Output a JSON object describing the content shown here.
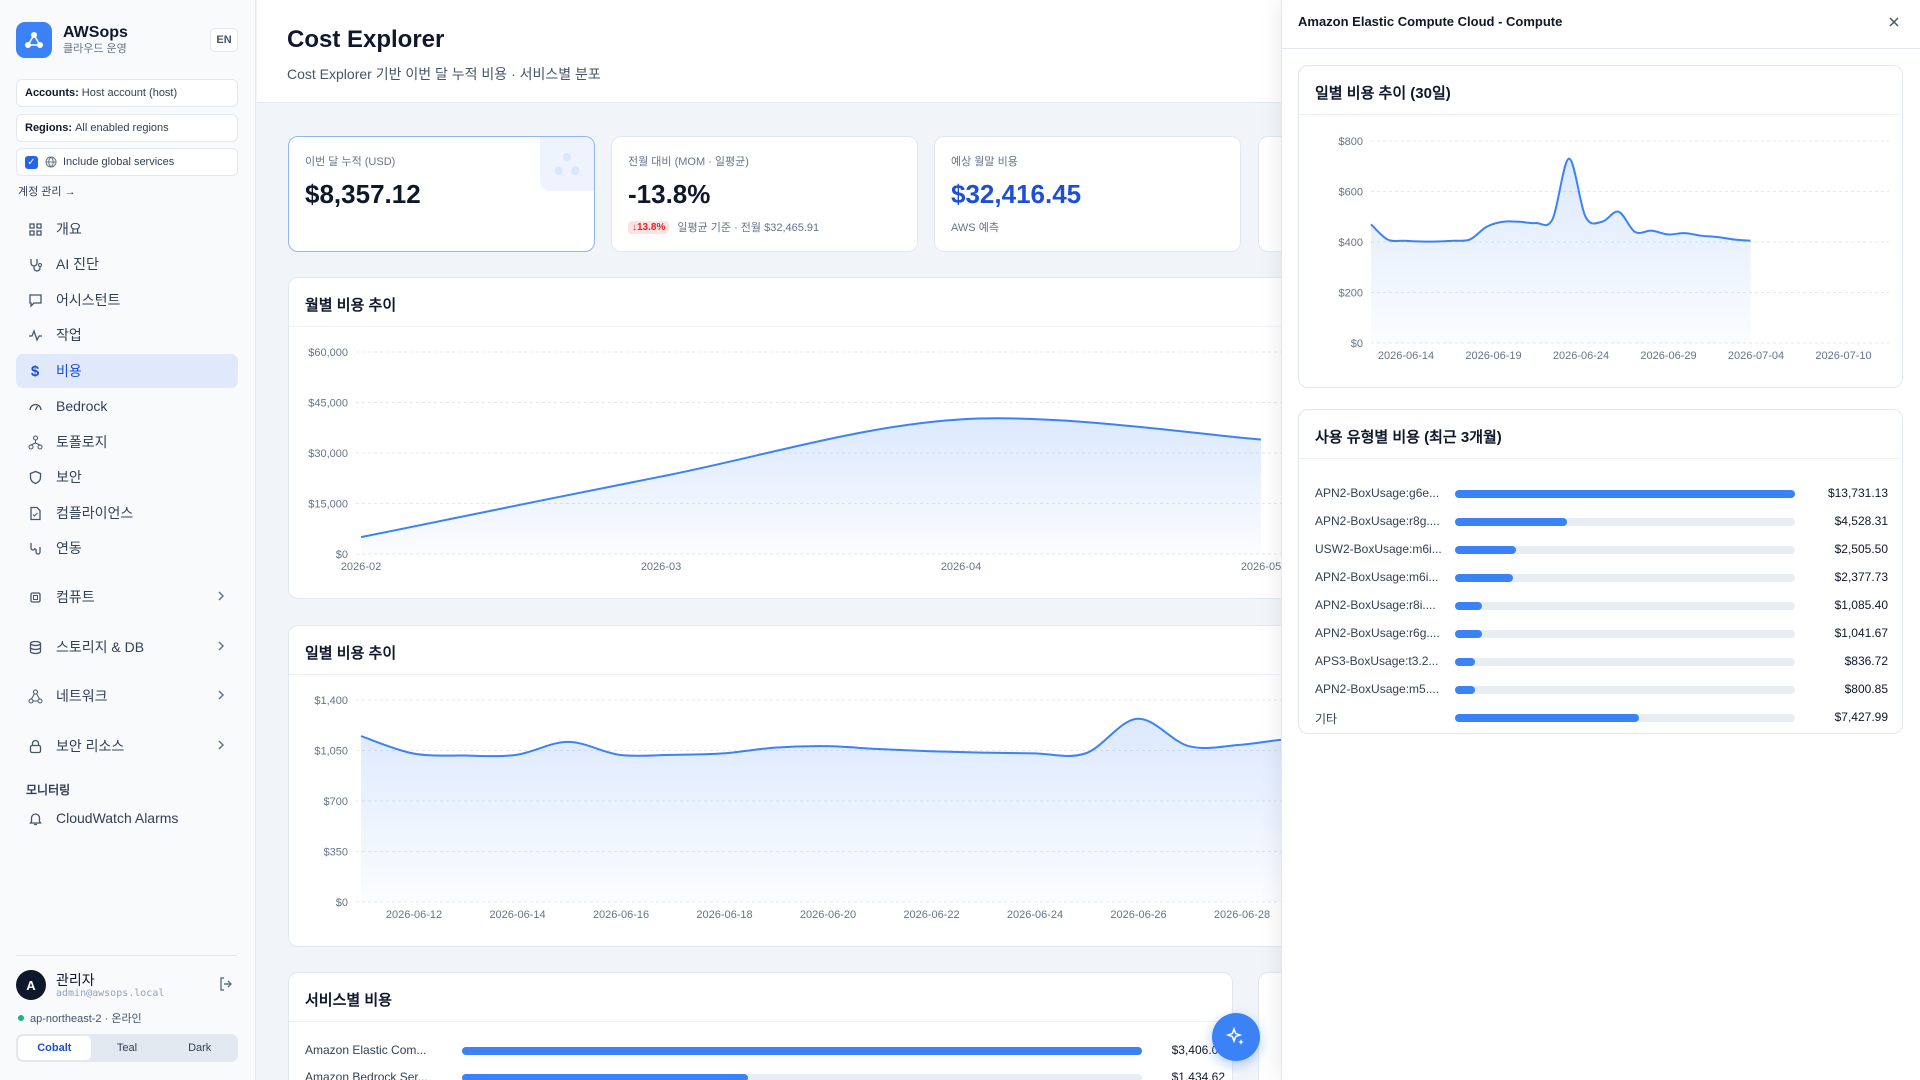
{
  "app": {
    "name": "AWSops",
    "subtitle": "클라우드 운영",
    "lang": "EN"
  },
  "sidebar": {
    "accounts_label": "Accounts:",
    "accounts_value": "Host account (host)",
    "regions_label": "Regions:",
    "regions_value": "All enabled regions",
    "global_label": "Include global services",
    "account_link": "계정 관리 →",
    "items": [
      {
        "label": "개요",
        "icon": "home-icon"
      },
      {
        "label": "AI 진단",
        "icon": "stethoscope-icon"
      },
      {
        "label": "어시스턴트",
        "icon": "chat-icon"
      },
      {
        "label": "작업",
        "icon": "activity-icon"
      },
      {
        "label": "비용",
        "icon": "dollar-icon"
      },
      {
        "label": "Bedrock",
        "icon": "gauge-icon"
      },
      {
        "label": "토폴로지",
        "icon": "topology-icon"
      },
      {
        "label": "보안",
        "icon": "shield-icon"
      },
      {
        "label": "컴플라이언스",
        "icon": "document-check-icon"
      },
      {
        "label": "연동",
        "icon": "link-icon"
      }
    ],
    "groups": [
      {
        "label": "컴퓨트",
        "icon": "cpu-icon"
      },
      {
        "label": "스토리지 & DB",
        "icon": "database-icon"
      },
      {
        "label": "네트워크",
        "icon": "network-icon"
      },
      {
        "label": "보안 리소스",
        "icon": "lock-icon"
      }
    ],
    "monitor_label": "모니터링",
    "monitor_item": "CloudWatch Alarms",
    "user_initial": "A",
    "user_name": "관리자",
    "user_email": "admin@awsops.local",
    "status": "ap-northeast-2 · 온라인",
    "themes": [
      "Cobalt",
      "Teal",
      "Dark"
    ]
  },
  "header": {
    "title": "Cost Explorer",
    "subtitle": "Cost Explorer 기반 이번 달 누적 비용 · 서비스별 분포"
  },
  "stats": [
    {
      "label": "이번 달 누적 (USD)",
      "value": "$8,357.12",
      "sub": ""
    },
    {
      "label": "전월 대비 (MOM · 일평균)",
      "value": "-13.8%",
      "badge": "↓13.8%",
      "sub": "일평균 기준 · 전월 $32,465.91"
    },
    {
      "label": "예상 월말 비용",
      "value": "$32,416.45",
      "sub": "AWS 예측"
    }
  ],
  "monthly_title": "월별 비용 추이",
  "daily_title": "일별 비용 추이",
  "service_title": "서비스별 비용",
  "services": [
    {
      "name": "Amazon Elastic Com...",
      "amount": "$3,406.05",
      "share": 1.0
    },
    {
      "name": "Amazon Bedrock Ser...",
      "amount": "$1,434.62",
      "share": 0.42
    }
  ],
  "drawer": {
    "title": "Amazon Elastic Compute Cloud - Compute",
    "daily_title": "일별 비용 추이 (30일)",
    "usage_title": "사용 유형별 비용 (최근 3개월)",
    "usage": [
      {
        "name": "APN2-BoxUsage:g6e...",
        "amount": "$13,731.13",
        "share": 1.0
      },
      {
        "name": "APN2-BoxUsage:r8g....",
        "amount": "$4,528.31",
        "share": 0.33
      },
      {
        "name": "USW2-BoxUsage:m6i...",
        "amount": "$2,505.50",
        "share": 0.18
      },
      {
        "name": "APN2-BoxUsage:m6i...",
        "amount": "$2,377.73",
        "share": 0.17
      },
      {
        "name": "APN2-BoxUsage:r8i....",
        "amount": "$1,085.40",
        "share": 0.08
      },
      {
        "name": "APN2-BoxUsage:r6g....",
        "amount": "$1,041.67",
        "share": 0.08
      },
      {
        "name": "APS3-BoxUsage:t3.2...",
        "amount": "$836.72",
        "share": 0.06
      },
      {
        "name": "APN2-BoxUsage:m5....",
        "amount": "$800.85",
        "share": 0.06
      },
      {
        "name": "기타",
        "amount": "$7,427.99",
        "share": 0.54
      }
    ]
  },
  "colors": {
    "accent": "#3b82f6",
    "active_bg": "#e0e9fb",
    "danger": "#dc2626"
  },
  "chart_data": [
    {
      "type": "area",
      "title": "월별 비용 추이",
      "x": [
        "2026-02",
        "2026-03",
        "2026-04",
        "2026-05"
      ],
      "values": [
        5000,
        23000,
        40000,
        34000
      ],
      "yticks": [
        "$0",
        "$15,000",
        "$30,000",
        "$45,000",
        "$60,000"
      ],
      "ylim": [
        0,
        60000
      ]
    },
    {
      "type": "area",
      "title": "일별 비용 추이",
      "xticks": [
        "2026-06-12",
        "2026-06-14",
        "2026-06-16",
        "2026-06-18",
        "2026-06-20",
        "2026-06-22",
        "2026-06-24",
        "2026-06-26",
        "2026-06-28"
      ],
      "yticks": [
        "$0",
        "$350",
        "$700",
        "$1,050",
        "$1,400"
      ],
      "ylim": [
        0,
        1400
      ],
      "values": [
        1150,
        1030,
        1015,
        1020,
        1110,
        1020,
        1020,
        1030,
        1070,
        1080,
        1060,
        1045,
        1035,
        1030,
        1030,
        1270,
        1080,
        1090,
        1130,
        1110,
        1100,
        950,
        940,
        960,
        940,
        940,
        920,
        920,
        920,
        920
      ]
    },
    {
      "type": "area",
      "title": "일별 비용 추이 (30일)",
      "xticks": [
        "2026-06-14",
        "2026-06-19",
        "2026-06-24",
        "2026-06-29",
        "2026-07-04",
        "2026-07-10"
      ],
      "yticks": [
        "$0",
        "$200",
        "$400",
        "$600",
        "$800"
      ],
      "ylim": [
        0,
        800
      ],
      "values": [
        470,
        410,
        405,
        402,
        402,
        405,
        410,
        460,
        480,
        480,
        475,
        490,
        730,
        500,
        480,
        520,
        440,
        445,
        430,
        435,
        425,
        420,
        410,
        405
      ]
    }
  ]
}
